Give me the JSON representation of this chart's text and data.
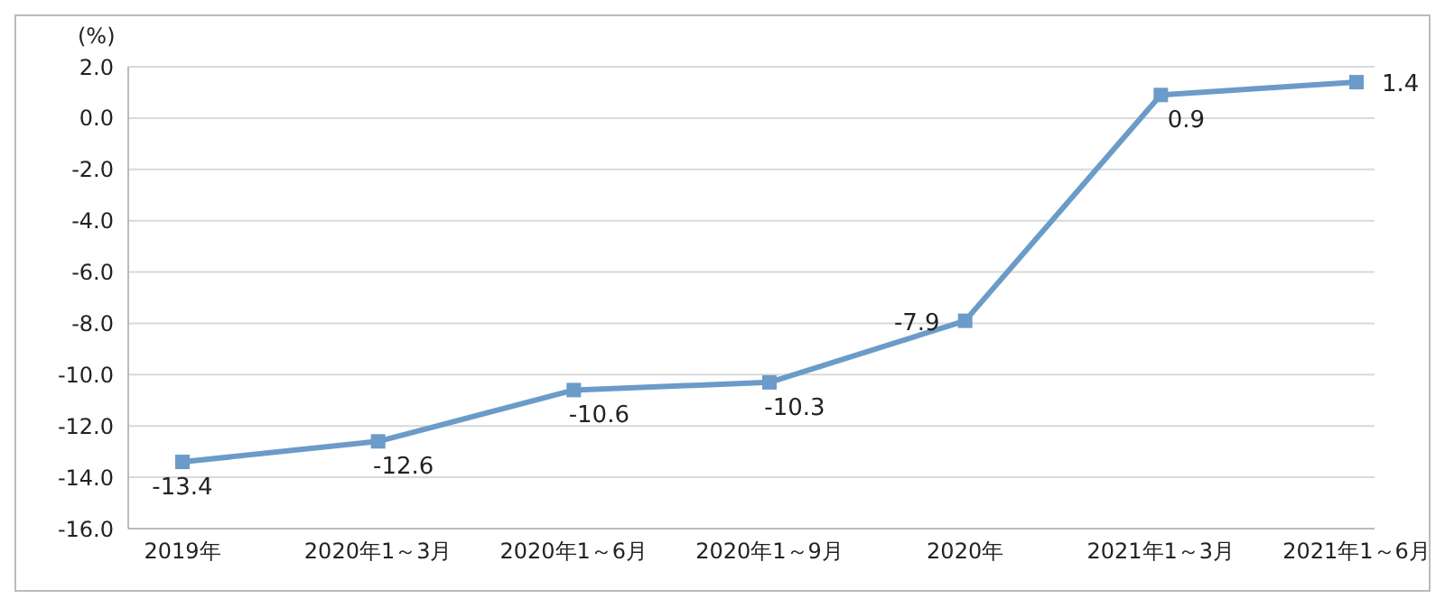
{
  "chart_data": {
    "type": "line",
    "ylabel": "(%)",
    "categories": [
      "2019年",
      "2020年1～3月",
      "2020年1～6月",
      "2020年1～9月",
      "2020年",
      "2021年1～3月",
      "2021年1～6月"
    ],
    "series": [
      {
        "color": "#6b9bc8",
        "values": [
          -13.4,
          -12.6,
          -10.6,
          -10.3,
          -7.9,
          0.9,
          1.4
        ]
      }
    ],
    "ylim": [
      -16,
      2
    ],
    "yticks": [
      {
        "value": 2,
        "label": "2.0"
      },
      {
        "value": 0,
        "label": "0.0"
      },
      {
        "value": -2,
        "label": "-2.0"
      },
      {
        "value": -4,
        "label": "-4.0"
      },
      {
        "value": -6,
        "label": "-6.0"
      },
      {
        "value": -8,
        "label": "-8.0"
      },
      {
        "value": -10,
        "label": "-10.0"
      },
      {
        "value": -12,
        "label": "-12.0"
      },
      {
        "value": -14,
        "label": "-14.0"
      },
      {
        "value": -16,
        "label": "-16.0"
      }
    ],
    "grid": "y",
    "marker": "square",
    "line_style": "solid",
    "data_labels": true,
    "legend": false
  }
}
